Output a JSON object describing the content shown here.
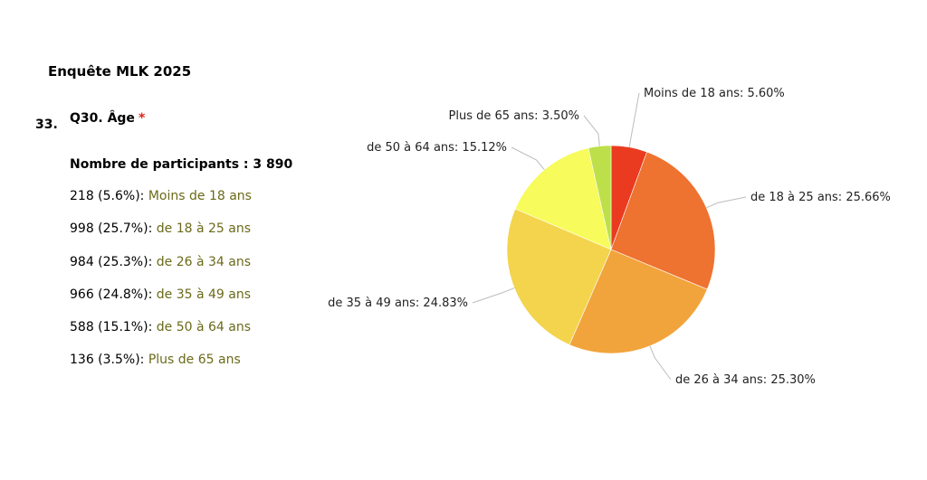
{
  "survey": {
    "title": "Enquête MLK 2025",
    "question_number": "33.",
    "question_title": "Q30. Âge",
    "required_mark": "*",
    "participants_label": "Nombre de participants : 3 890"
  },
  "answers": [
    {
      "count": "218 (5.6%):",
      "label": "Moins de 18 ans"
    },
    {
      "count": "998 (25.7%):",
      "label": "de 18 à 25 ans"
    },
    {
      "count": "984 (25.3%):",
      "label": "de 26 à 34 ans"
    },
    {
      "count": "966 (24.8%):",
      "label": "de 35 à 49 ans"
    },
    {
      "count": "588 (15.1%):",
      "label": "de 50 à 64 ans"
    },
    {
      "count": "136 (3.5%):",
      "label": "Plus de 65 ans"
    }
  ],
  "chart_data": {
    "type": "pie",
    "categories": [
      "Moins de 18 ans",
      "de 18 à 25 ans",
      "de 26 à 34 ans",
      "de 35 à 49 ans",
      "de 50 à 64 ans",
      "Plus de 65 ans"
    ],
    "values": [
      5.6,
      25.66,
      25.3,
      24.83,
      15.12,
      3.5
    ],
    "labels": [
      "Moins de 18 ans: 5.60%",
      "de 18 à 25 ans: 25.66%",
      "de 26 à 34 ans: 25.30%",
      "de 35 à 49 ans: 24.83%",
      "de 50 à 64 ans: 15.12%",
      "Plus de 65 ans: 3.50%"
    ],
    "colors": [
      "#ea3b20",
      "#ee7230",
      "#f2a43c",
      "#f3d44c",
      "#f7fb5c",
      "#bde04a"
    ]
  }
}
